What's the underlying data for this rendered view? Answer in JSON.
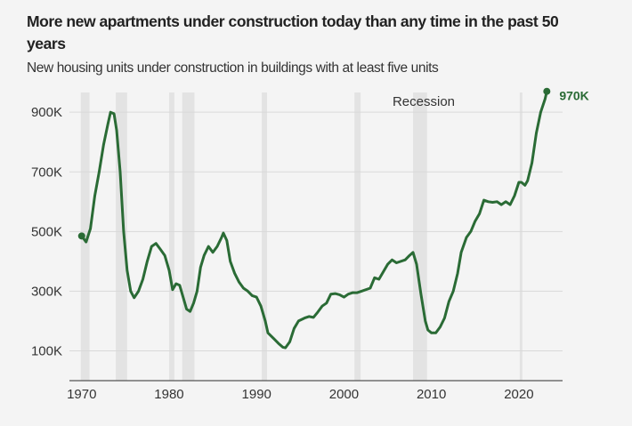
{
  "chart_data": {
    "type": "line",
    "title": "More new apartments under construction today than any time in the past 50 years",
    "subtitle": "New housing units under construction in buildings with at least five units",
    "xlim": [
      1968.6,
      2025
    ],
    "ylim": [
      0,
      990
    ],
    "x_ticks": [
      1970,
      1980,
      1990,
      2000,
      2010,
      2020
    ],
    "x_tick_labels": [
      "1970",
      "1980",
      "1990",
      "2000",
      "2010",
      "2020"
    ],
    "y_ticks": [
      100,
      300,
      500,
      700,
      900
    ],
    "y_tick_labels": [
      "100K",
      "300K",
      "500K",
      "700K",
      "900K"
    ],
    "grid": "horizontal",
    "line_color": "#2a6b35",
    "recession_color": "#e3e3e3",
    "recession_label": "Recession",
    "recessions": [
      [
        1969.9,
        1970.9
      ],
      [
        1973.9,
        1975.2
      ],
      [
        1980.0,
        1980.6
      ],
      [
        1981.5,
        1982.9
      ],
      [
        1990.6,
        1991.2
      ],
      [
        2001.2,
        2001.9
      ],
      [
        2007.9,
        2009.5
      ],
      [
        2020.1,
        2020.4
      ]
    ],
    "end_label": "970K",
    "series": [
      {
        "unit": "thousands",
        "x": [
          1970,
          1970.5,
          1971,
          1971.5,
          1972,
          1972.5,
          1973,
          1973.3,
          1973.7,
          1974,
          1974.4,
          1974.8,
          1975.2,
          1975.6,
          1976,
          1976.5,
          1977,
          1977.5,
          1978,
          1978.5,
          1979,
          1979.5,
          1980,
          1980.4,
          1980.8,
          1981.2,
          1981.6,
          1982,
          1982.4,
          1982.8,
          1983.2,
          1983.6,
          1984,
          1984.5,
          1985,
          1985.5,
          1986,
          1986.2,
          1986.6,
          1987,
          1987.5,
          1988,
          1988.5,
          1989,
          1989.5,
          1990,
          1990.5,
          1991,
          1991.3,
          1992,
          1992.5,
          1993,
          1993.3,
          1993.8,
          1994.3,
          1994.8,
          1995.5,
          1996,
          1996.5,
          1997,
          1997.5,
          1998,
          1998.5,
          1999,
          1999.5,
          2000,
          2000.5,
          2001,
          2001.5,
          2002,
          2003,
          2003.5,
          2004,
          2004.5,
          2005,
          2005.5,
          2006,
          2007,
          2007.5,
          2007.9,
          2008.3,
          2008.8,
          2009.3,
          2009.6,
          2010,
          2010.5,
          2011,
          2011.5,
          2012,
          2012.5,
          2013,
          2013.4,
          2014,
          2014.5,
          2015,
          2015.5,
          2016,
          2016.5,
          2017,
          2017.5,
          2018,
          2018.5,
          2019,
          2019.5,
          2020,
          2020.3,
          2020.7,
          2021,
          2021.5,
          2022,
          2022.5,
          2023,
          2023.2
        ],
        "y": [
          485,
          465,
          510,
          620,
          700,
          790,
          860,
          900,
          895,
          840,
          700,
          500,
          370,
          300,
          278,
          300,
          340,
          400,
          450,
          460,
          440,
          420,
          370,
          305,
          325,
          320,
          280,
          240,
          232,
          260,
          300,
          380,
          420,
          450,
          430,
          450,
          480,
          495,
          470,
          400,
          360,
          330,
          310,
          300,
          285,
          280,
          250,
          200,
          160,
          140,
          125,
          112,
          110,
          130,
          175,
          200,
          210,
          215,
          212,
          230,
          250,
          260,
          290,
          292,
          288,
          280,
          290,
          295,
          295,
          300,
          310,
          345,
          340,
          365,
          390,
          405,
          395,
          405,
          420,
          430,
          390,
          290,
          200,
          170,
          160,
          160,
          180,
          210,
          265,
          300,
          360,
          430,
          480,
          500,
          535,
          560,
          605,
          600,
          598,
          600,
          590,
          600,
          590,
          620,
          665,
          665,
          655,
          670,
          730,
          830,
          900,
          945,
          970
        ]
      }
    ]
  }
}
